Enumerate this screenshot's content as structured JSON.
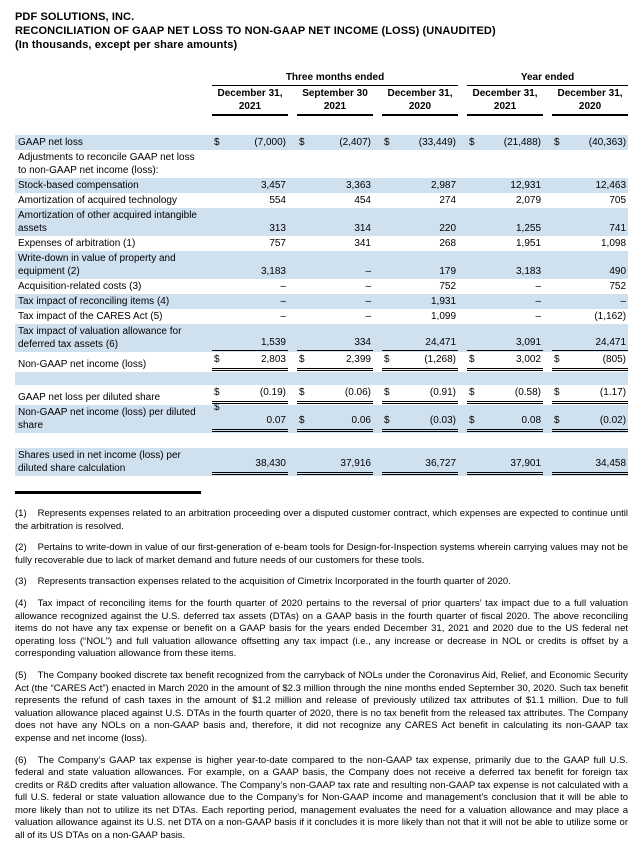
{
  "header": {
    "company": "PDF SOLUTIONS, INC.",
    "title": "RECONCILIATION OF GAAP NET LOSS TO NON-GAAP NET INCOME (LOSS) (UNAUDITED)",
    "subtitle": "(In thousands, except per share amounts)"
  },
  "colors": {
    "row_highlight": "#cfe0ee",
    "rule": "#000000"
  },
  "currency_symbol": "$",
  "table": {
    "group_headers": [
      {
        "label": "Three months ended",
        "span": 3
      },
      {
        "label": "Year ended",
        "span": 2
      }
    ],
    "columns": [
      {
        "line1": "December 31,",
        "line2": "2021"
      },
      {
        "line1": "September 30",
        "line2": "2021"
      },
      {
        "line1": "December 31,",
        "line2": "2020"
      },
      {
        "line1": "December 31,",
        "line2": "2021"
      },
      {
        "line1": "December 31,",
        "line2": "2020"
      }
    ],
    "rows": [
      {
        "label": "GAAP net loss",
        "bg": "blue",
        "dollar": true,
        "rule": "none",
        "values": [
          "(7,000)",
          "(2,407)",
          "(33,449)",
          "(21,488)",
          "(40,363)"
        ]
      },
      {
        "label": "Adjustments to reconcile GAAP net loss to non-GAAP net income (loss):",
        "bg": "white",
        "values": null
      },
      {
        "label": "Stock-based compensation",
        "bg": "blue",
        "dollar": false,
        "rule": "none",
        "values": [
          "3,457",
          "3,363",
          "2,987",
          "12,931",
          "12,463"
        ]
      },
      {
        "label": "Amortization of acquired technology",
        "bg": "white",
        "dollar": false,
        "rule": "none",
        "values": [
          "554",
          "454",
          "274",
          "2,079",
          "705"
        ]
      },
      {
        "label": "Amortization of other acquired intangible assets",
        "bg": "blue",
        "dollar": false,
        "rule": "none",
        "values": [
          "313",
          "314",
          "220",
          "1,255",
          "741"
        ]
      },
      {
        "label": "Expenses of arbitration (1)",
        "bg": "white",
        "dollar": false,
        "rule": "none",
        "values": [
          "757",
          "341",
          "268",
          "1,951",
          "1,098"
        ]
      },
      {
        "label": "Write-down in value of property and equipment (2)",
        "bg": "blue",
        "dollar": false,
        "rule": "none",
        "values": [
          "3,183",
          "–",
          "179",
          "3,183",
          "490"
        ]
      },
      {
        "label": "Acquisition-related costs (3)",
        "bg": "white",
        "dollar": false,
        "rule": "none",
        "values": [
          "–",
          "–",
          "752",
          "–",
          "752"
        ]
      },
      {
        "label": "Tax impact of reconciling items (4)",
        "bg": "blue",
        "dollar": false,
        "rule": "none",
        "values": [
          "–",
          "–",
          "1,931",
          "–",
          "–"
        ]
      },
      {
        "label": "Tax impact of the CARES Act (5)",
        "bg": "white",
        "dollar": false,
        "rule": "none",
        "values": [
          "–",
          "–",
          "1,099",
          "–",
          "(1,162)"
        ]
      },
      {
        "label": "Tax impact of valuation allowance for deferred tax assets (6)",
        "bg": "blue",
        "dollar": false,
        "rule": "single",
        "values": [
          "1,539",
          "334",
          "24,471",
          "3,091",
          "24,471"
        ]
      },
      {
        "label": "Non-GAAP net income (loss)",
        "bg": "white",
        "dollar": true,
        "rule": "double",
        "values": [
          "2,803",
          "2,399",
          "(1,268)",
          "3,002",
          "(805)"
        ]
      },
      {
        "blank": true,
        "bg": "blue"
      },
      {
        "label": "GAAP net loss per diluted share",
        "bg": "white",
        "dollar": true,
        "rule": "double",
        "values": [
          "(0.19)",
          "(0.06)",
          "(0.91)",
          "(0.58)",
          "(1.17)"
        ]
      },
      {
        "label": "Non-GAAP net income (loss) per diluted share",
        "bg": "blue",
        "dollar": true,
        "dollar_top": true,
        "rule": "double",
        "values": [
          "0.07",
          "0.06",
          "(0.03)",
          "0.08",
          "(0.02)"
        ]
      },
      {
        "blank": true,
        "bg": "white",
        "tall": true
      },
      {
        "label": "Shares used in net income (loss) per diluted share calculation",
        "bg": "blue",
        "dollar": false,
        "rule": "double",
        "values": [
          "38,430",
          "37,916",
          "36,727",
          "37,901",
          "34,458"
        ]
      }
    ]
  },
  "footnotes": [
    {
      "num": "(1)",
      "text": "Represents expenses related to an arbitration proceeding over a disputed customer contract, which expenses are expected to continue until the arbitration is resolved."
    },
    {
      "num": "(2)",
      "text": "Pertains to write-down in value of our first-generation of e-beam tools for Design-for-Inspection systems wherein carrying values may not be fully recoverable due to lack of market demand and future needs of our customers for these tools."
    },
    {
      "num": "(3)",
      "text": "Represents transaction expenses related to the acquisition of Cimetrix Incorporated in the fourth quarter of 2020."
    },
    {
      "num": "(4)",
      "text": "Tax impact of reconciling items for the fourth quarter of 2020 pertains to the reversal of prior quarters’ tax impact due to a full valuation allowance recognized against the U.S. deferred tax assets (DTAs) on a GAAP basis in the fourth quarter of fiscal 2020. The above reconciling items do not have any tax expense or benefit on a GAAP basis for the years ended December 31, 2021 and 2020 due to the US federal net operating loss (“NOL”) and full valuation allowance offsetting any tax impact (i.e., any increase or decrease in NOL or credits is offset by a corresponding valuation allowance from these items."
    },
    {
      "num": "(5)",
      "text": "The Company booked discrete tax benefit recognized from the carryback of NOLs under the Coronavirus Aid, Relief, and Economic Security Act (the “CARES Act”) enacted in March 2020 in the amount of $2.3 million through the nine months ended September 30, 2020. Such tax benefit represents the refund of cash taxes in the amount of $1.2 million and release of previously utilized tax attributes of $1.1 million. Due to full valuation allowance placed against U.S. DTAs in the fourth quarter of 2020, there is no tax benefit from the released tax attributes. The Company does not have any NOLs on a non-GAAP basis and, therefore, it did not recognize any CARES Act benefit in calculating its non-GAAP tax expense and net income (loss)."
    },
    {
      "num": "(6)",
      "text": "The Company’s GAAP tax expense is higher year-to-date compared to the non-GAAP tax expense, primarily due to the GAAP full U.S. federal and state valuation allowances. For example, on a GAAP basis, the Company does not receive a deferred tax benefit for foreign tax credits or R&D credits after valuation allowance. The Company’s non-GAAP tax rate and resulting non-GAAP tax expense is not calculated with a full U.S. federal or state valuation allowance due to the Company’s for Non-GAAP income and management’s conclusion that it will be able to more likely than not to utilize its net DTAs. Each reporting period, management evaluates the need for a valuation allowance and may place a valuation allowance against its U.S. net DTA on a non-GAAP basis if it concludes it is more likely than not that it will not be able to utilize some or all of its US DTAs on a non-GAAP basis."
    }
  ]
}
